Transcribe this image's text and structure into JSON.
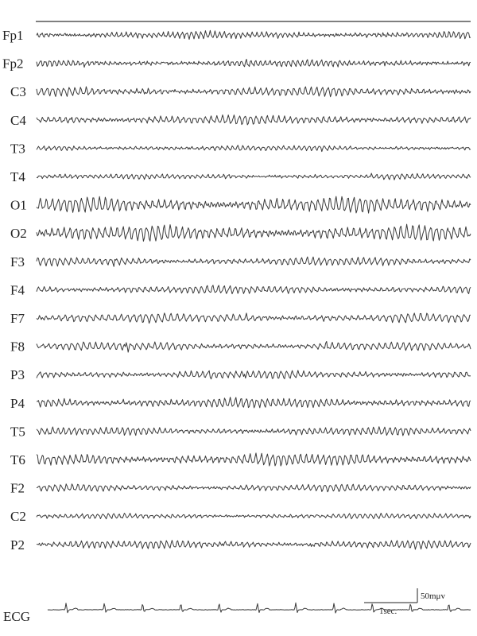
{
  "chart_data": {
    "type": "line",
    "title": "",
    "xlabel": "",
    "ylabel": "",
    "channels": [
      {
        "name": "Fp1",
        "amp": 3.5,
        "freq": 24,
        "noise": 0.7
      },
      {
        "name": "Fp2",
        "amp": 3.5,
        "freq": 24,
        "noise": 0.7
      },
      {
        "name": "C3",
        "amp": 4.5,
        "freq": 20,
        "noise": 0.5
      },
      {
        "name": "C4",
        "amp": 4.5,
        "freq": 20,
        "noise": 0.5
      },
      {
        "name": "T3",
        "amp": 2.5,
        "freq": 22,
        "noise": 0.6
      },
      {
        "name": "T4",
        "amp": 2.5,
        "freq": 22,
        "noise": 0.6
      },
      {
        "name": "O1",
        "amp": 7.5,
        "freq": 19,
        "noise": 0.4
      },
      {
        "name": "O2",
        "amp": 7.5,
        "freq": 19,
        "noise": 0.4
      },
      {
        "name": "F3",
        "amp": 4.0,
        "freq": 20,
        "noise": 0.5
      },
      {
        "name": "F4",
        "amp": 4.0,
        "freq": 20,
        "noise": 0.5
      },
      {
        "name": "F7",
        "amp": 4.5,
        "freq": 18,
        "noise": 0.6
      },
      {
        "name": "F8",
        "amp": 4.0,
        "freq": 19,
        "noise": 0.5
      },
      {
        "name": "P3",
        "amp": 4.0,
        "freq": 20,
        "noise": 0.4
      },
      {
        "name": "P4",
        "amp": 5.0,
        "freq": 21,
        "noise": 0.4
      },
      {
        "name": "T5",
        "amp": 4.0,
        "freq": 21,
        "noise": 0.5
      },
      {
        "name": "T6",
        "amp": 6.0,
        "freq": 20,
        "noise": 0.4
      },
      {
        "name": "F2",
        "amp": 3.5,
        "freq": 20,
        "noise": 0.5
      },
      {
        "name": "C2",
        "amp": 2.5,
        "freq": 21,
        "noise": 0.6
      },
      {
        "name": "P2",
        "amp": 4.0,
        "freq": 21,
        "noise": 0.5
      }
    ],
    "ecg": {
      "name": "ECG",
      "beats_per_second": 1.3
    },
    "duration_seconds": 8.5,
    "scale_bar": {
      "amplitude_label": "50mμv",
      "time_label": "1sec."
    }
  }
}
